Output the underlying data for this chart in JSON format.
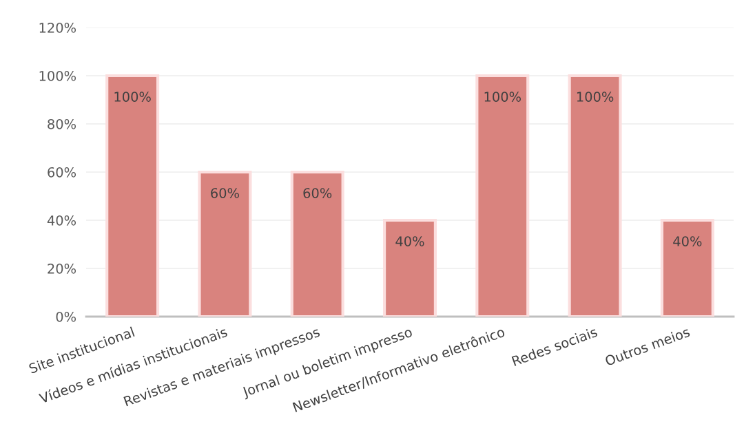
{
  "chart_data": {
    "type": "bar",
    "categories": [
      "Site institucional",
      "Vídeos e mídias institucionais",
      "Revistas e materiais impressos",
      "Jornal ou boletim impresso",
      "Newsletter/Informativo eletrônico",
      "Redes sociais",
      "Outros meios"
    ],
    "values": [
      100,
      60,
      60,
      40,
      100,
      100,
      40
    ],
    "value_labels": [
      "100%",
      "60%",
      "60%",
      "40%",
      "100%",
      "100%",
      "40%"
    ],
    "color": "#d9837e",
    "ylim": [
      0,
      120
    ],
    "yticks": [
      {
        "value": 0,
        "label": "0%"
      },
      {
        "value": 20,
        "label": "20%"
      },
      {
        "value": 40,
        "label": "40%"
      },
      {
        "value": 60,
        "label": "60%"
      },
      {
        "value": 80,
        "label": "80%"
      },
      {
        "value": 100,
        "label": "100%"
      },
      {
        "value": 120,
        "label": "120%"
      }
    ],
    "grid": "y",
    "legend": false
  }
}
